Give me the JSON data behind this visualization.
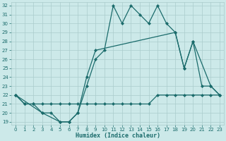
{
  "xlabel": "Humidex (Indice chaleur)",
  "color": "#1a6b6b",
  "bg_color": "#cce9e9",
  "grid_color": "#aacccc",
  "ylim_min": 18.7,
  "ylim_max": 32.4,
  "xlim_min": -0.5,
  "xlim_max": 23.5,
  "yticks": [
    19,
    20,
    21,
    22,
    23,
    24,
    25,
    26,
    27,
    28,
    29,
    30,
    31,
    32
  ],
  "xticks": [
    0,
    1,
    2,
    3,
    4,
    5,
    6,
    7,
    8,
    9,
    10,
    11,
    12,
    13,
    14,
    15,
    16,
    17,
    18,
    19,
    20,
    21,
    22,
    23
  ],
  "line1_x": [
    0,
    1,
    2,
    3,
    4,
    5,
    6,
    7,
    8,
    9,
    10,
    11,
    12,
    13,
    14,
    15,
    16,
    17,
    18,
    19,
    20,
    21,
    22,
    23
  ],
  "line1_y": [
    22,
    21,
    21,
    20,
    20,
    19,
    19,
    20,
    23,
    26,
    27,
    32,
    30,
    32,
    31,
    30,
    32,
    30,
    29,
    25,
    28,
    23,
    23,
    22
  ],
  "line2_x": [
    0,
    3,
    5,
    6,
    7,
    8,
    9,
    18,
    19,
    20,
    22,
    23
  ],
  "line2_y": [
    22,
    20,
    19,
    19,
    20,
    24,
    27,
    29,
    25,
    28,
    23,
    22
  ],
  "line3_x": [
    0,
    1,
    2,
    3,
    4,
    5,
    6,
    7,
    8,
    9,
    10,
    11,
    12,
    13,
    14,
    15,
    16,
    17,
    18,
    19,
    20,
    21,
    22,
    23
  ],
  "line3_y": [
    22,
    21,
    21,
    21,
    21,
    21,
    21,
    21,
    21,
    21,
    21,
    21,
    21,
    21,
    21,
    21,
    22,
    22,
    22,
    22,
    22,
    22,
    22,
    22
  ],
  "linewidth": 0.9,
  "markersize": 2.2,
  "tick_fontsize": 5.0,
  "xlabel_fontsize": 6.0
}
